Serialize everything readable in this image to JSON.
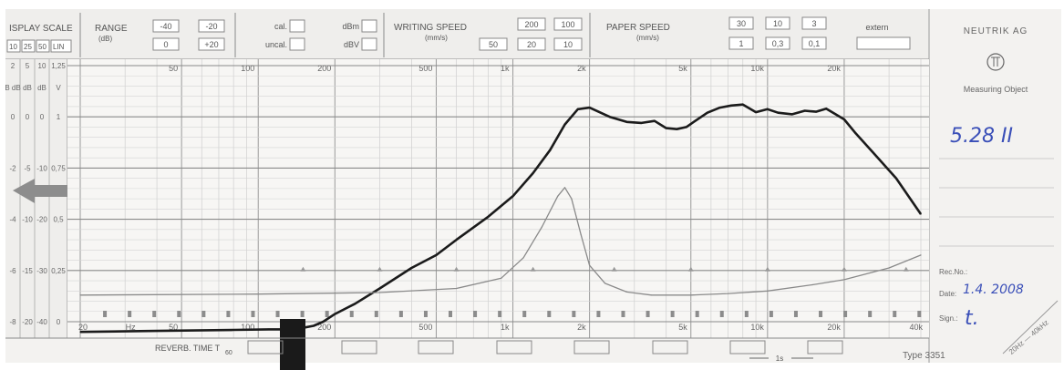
{
  "header": {
    "display_scale": {
      "label": "ISPLAY SCALE",
      "options": [
        "10",
        "25",
        "50",
        "LIN"
      ],
      "columns": [
        {
          "unit": "2",
          "rows": [
            "B dB",
            "0",
            "-2",
            "-4",
            "-6",
            "-8"
          ]
        },
        {
          "unit": "5",
          "rows": [
            "dB",
            "0",
            "-5",
            "-10",
            "-15",
            "-20"
          ]
        },
        {
          "unit": "10",
          "rows": [
            "dB",
            "0",
            "-10",
            "-20",
            "-30",
            "-40"
          ]
        },
        {
          "unit": "1,25",
          "rows": [
            "V",
            "1",
            "0,75",
            "0,5",
            "0,25",
            "0"
          ]
        }
      ]
    },
    "range": {
      "label": "RANGE",
      "unit": "(dB)",
      "boxes": [
        "-40",
        "-20",
        "0",
        "+20"
      ]
    },
    "cal": {
      "cal": "cal.",
      "uncal": "uncal.",
      "dbm": "dBm",
      "dbv": "dBV"
    },
    "writing_speed": {
      "label": "WRITING SPEED",
      "unit": "(mm/s)",
      "top": [
        "200",
        "100"
      ],
      "bottom": [
        "50",
        "20",
        "10"
      ]
    },
    "paper_speed": {
      "label": "PAPER SPEED",
      "unit": "(mm/s)",
      "top": [
        "30",
        "10",
        "3"
      ],
      "bottom": [
        "1",
        "0,3",
        "0,1"
      ],
      "extern": "extern"
    }
  },
  "sidebar": {
    "brand": "NEUTRIK AG",
    "measuring_object_label": "Measuring Object",
    "measuring_object_value": "5.28 II",
    "rec_no_label": "Rec.No.:",
    "date_label": "Date:",
    "date_value": "1.4. 2008",
    "sign_label": "Sign.:",
    "sign_value": "t.",
    "range_note": "20Hz — 40kHz",
    "type_label": "Type 3351"
  },
  "footer": {
    "reverb_label": "REVERB. TIME T",
    "reverb_sub": "60",
    "one_second": "1s"
  },
  "chart_data": {
    "type": "line",
    "title": "",
    "xscale": "log",
    "xlim": [
      20,
      40000
    ],
    "ylim": [
      -40,
      10
    ],
    "ylabel": "dB",
    "top_ticks": [
      "50",
      "100",
      "200",
      "500",
      "1k",
      "2k",
      "5k",
      "10k",
      "20k"
    ],
    "bottom_ticks": [
      "20",
      "Hz",
      "50",
      "100",
      "200",
      "500",
      "1k",
      "2k",
      "5k",
      "10k",
      "20k",
      "40k"
    ],
    "legend": "none",
    "grid": true,
    "series": [
      {
        "x": [
          20,
          40,
          80,
          110,
          135,
          150,
          165,
          180,
          200,
          240,
          300,
          400,
          500,
          600,
          800,
          1000,
          1200,
          1400,
          1600,
          1800,
          2000,
          2400,
          2800,
          3200,
          3600,
          4000,
          4400,
          4800,
          5200,
          5800,
          6500,
          7200,
          8000,
          9000,
          10000,
          11000,
          12500,
          14000,
          15500,
          17000,
          18500,
          20000,
          22000,
          26000,
          32000,
          40000
        ],
        "y": [
          -42,
          -41.8,
          -41.6,
          -41.5,
          -41.5,
          -41.2,
          -40.8,
          -40,
          -38.5,
          -36.5,
          -33.5,
          -29.5,
          -27,
          -24,
          -19.5,
          -15.5,
          -11,
          -6.5,
          -1.5,
          1.5,
          1.8,
          0,
          -1,
          -1.2,
          -0.8,
          -2.2,
          -2.4,
          -2,
          -0.8,
          0.8,
          1.8,
          2.2,
          2.4,
          0.9,
          1.5,
          0.8,
          0.5,
          1.2,
          1.0,
          1.6,
          0.5,
          -0.5,
          -3,
          -7,
          -12,
          -19
        ]
      },
      {
        "x": [
          20,
          100,
          300,
          600,
          900,
          1100,
          1300,
          1500,
          1600,
          1700,
          1850,
          2000,
          2300,
          2800,
          3500,
          5000,
          7000,
          10000,
          15000,
          20000,
          30000,
          40000
        ],
        "y": [
          -34.8,
          -34.6,
          -34.3,
          -33.5,
          -31.5,
          -27.5,
          -21.5,
          -15.5,
          -13.8,
          -16,
          -23,
          -29,
          -32.5,
          -34.2,
          -34.8,
          -34.8,
          -34.5,
          -34,
          -32.8,
          -31.8,
          -29.5,
          -27
        ]
      }
    ]
  }
}
